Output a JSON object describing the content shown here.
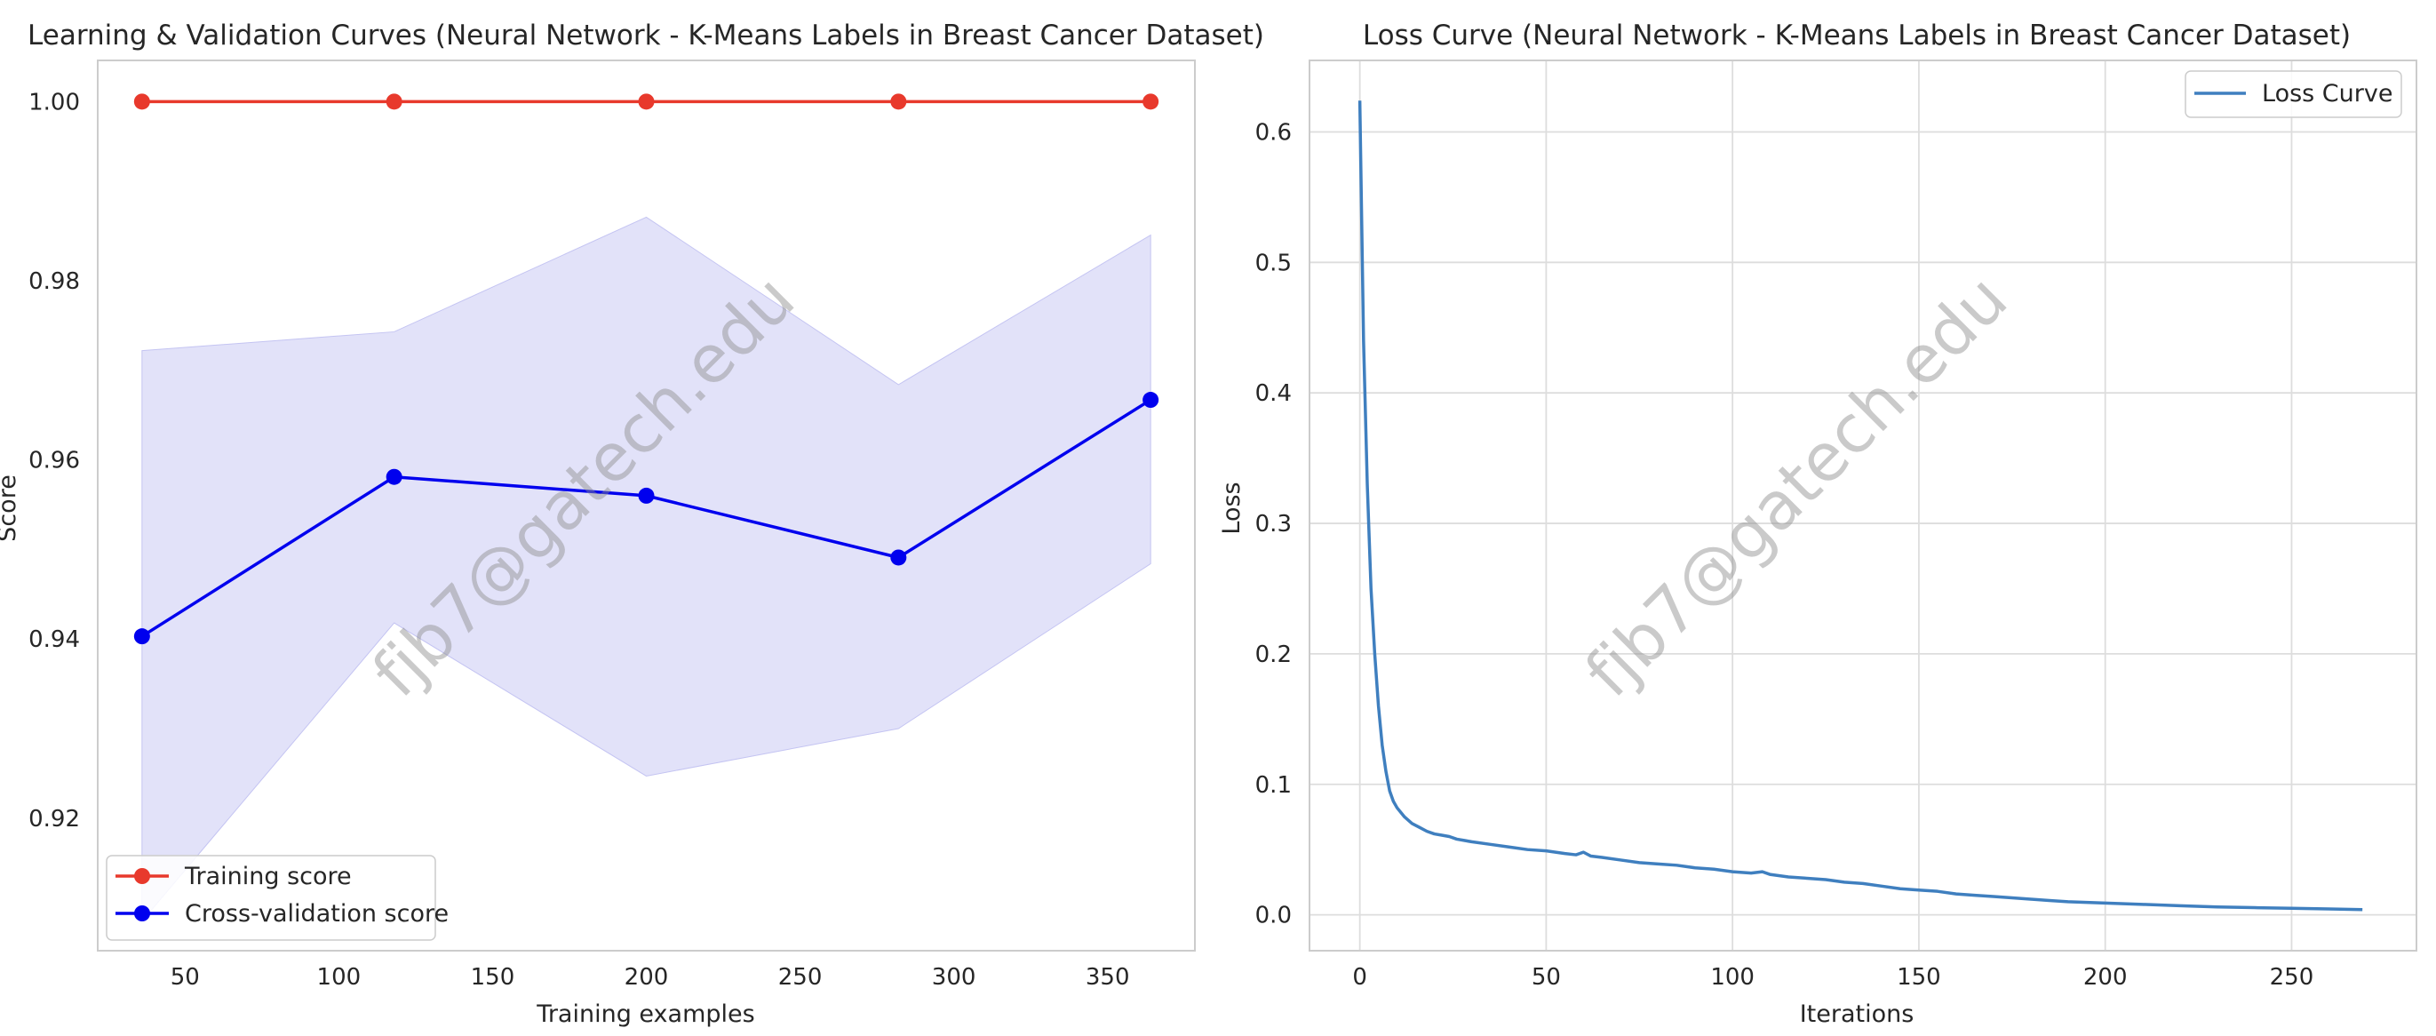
{
  "watermark": "fjb7@gatech.edu",
  "chart_data": [
    {
      "type": "line",
      "title": "Learning & Validation Curves (Neural Network - K-Means Labels in Breast Cancer Dataset)",
      "xlabel": "Training examples",
      "ylabel": "Score",
      "xlim": [
        21.6,
        378.4
      ],
      "ylim": [
        0.9052,
        1.0046
      ],
      "xticks": [
        50,
        100,
        150,
        200,
        250,
        300,
        350
      ],
      "yticks": [
        0.92,
        0.94,
        0.96,
        0.98,
        1.0
      ],
      "ytick_labels": [
        "0.92",
        "0.94",
        "0.96",
        "0.98",
        "1.00"
      ],
      "grid": false,
      "legend_position": "lower-left",
      "x": [
        36,
        118,
        200,
        282,
        364
      ],
      "series": [
        {
          "name": "Training score",
          "color": "#e8392c",
          "values": [
            1.0,
            1.0,
            1.0,
            1.0,
            1.0
          ]
        },
        {
          "name": "Cross-validation score",
          "color": "#0000ee",
          "values": [
            0.9403,
            0.9581,
            0.956,
            0.9491,
            0.9667
          ],
          "band_lower": [
            0.9085,
            0.9418,
            0.9247,
            0.93,
            0.9484
          ],
          "band_upper": [
            0.9722,
            0.9743,
            0.9871,
            0.9684,
            0.9851
          ],
          "band_color": "#d6d6f7"
        }
      ]
    },
    {
      "type": "line",
      "title": "Loss Curve (Neural Network - K-Means Labels in Breast Cancer Dataset)",
      "xlabel": "Iterations",
      "ylabel": "Loss",
      "xlim": [
        -13.5,
        283.5
      ],
      "ylim": [
        -0.0275,
        0.6548
      ],
      "xticks": [
        0,
        50,
        100,
        150,
        200,
        250
      ],
      "yticks": [
        0.0,
        0.1,
        0.2,
        0.3,
        0.4,
        0.5,
        0.6
      ],
      "ytick_labels": [
        "0.0",
        "0.1",
        "0.2",
        "0.3",
        "0.4",
        "0.5",
        "0.6"
      ],
      "grid": true,
      "legend_position": "top-right",
      "series": [
        {
          "name": "Loss Curve",
          "color": "#3f7fbf",
          "x": [
            0,
            1,
            2,
            3,
            4,
            5,
            6,
            7,
            8,
            9,
            10,
            12,
            14,
            16,
            18,
            20,
            22,
            24,
            26,
            28,
            30,
            35,
            40,
            45,
            50,
            55,
            58,
            60,
            62,
            65,
            70,
            75,
            80,
            85,
            90,
            95,
            100,
            105,
            108,
            110,
            115,
            120,
            125,
            130,
            135,
            140,
            145,
            150,
            155,
            160,
            165,
            170,
            175,
            180,
            185,
            190,
            200,
            210,
            220,
            230,
            240,
            250,
            260,
            269
          ],
          "values": [
            0.624,
            0.44,
            0.33,
            0.25,
            0.2,
            0.16,
            0.13,
            0.11,
            0.095,
            0.087,
            0.082,
            0.075,
            0.07,
            0.067,
            0.064,
            0.062,
            0.061,
            0.06,
            0.058,
            0.057,
            0.056,
            0.054,
            0.052,
            0.05,
            0.049,
            0.047,
            0.046,
            0.048,
            0.045,
            0.044,
            0.042,
            0.04,
            0.039,
            0.038,
            0.036,
            0.035,
            0.033,
            0.032,
            0.033,
            0.031,
            0.029,
            0.028,
            0.027,
            0.025,
            0.024,
            0.022,
            0.02,
            0.019,
            0.018,
            0.016,
            0.015,
            0.014,
            0.013,
            0.012,
            0.011,
            0.01,
            0.009,
            0.008,
            0.007,
            0.006,
            0.0055,
            0.005,
            0.0045,
            0.004
          ]
        }
      ]
    }
  ]
}
